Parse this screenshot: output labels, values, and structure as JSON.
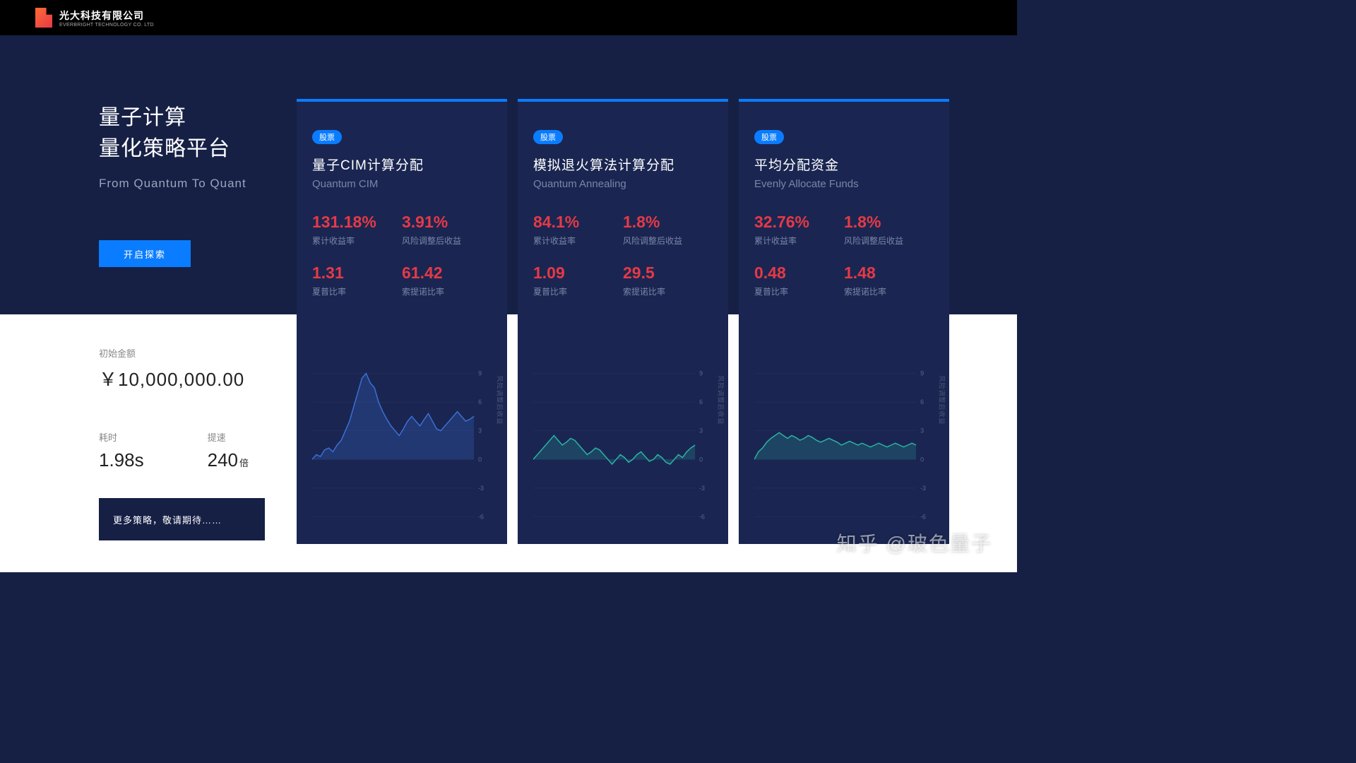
{
  "header": {
    "company_cn": "光大科技有限公司",
    "company_en": "EVERBRIGHT TECHNOLOGY CO. LTD"
  },
  "hero": {
    "title_line1": "量子计算",
    "title_line2": "量化策略平台",
    "subtitle": "From Quantum To Quant",
    "explore_label": "开启探索"
  },
  "stats": {
    "amount_label": "初始金额",
    "amount_value": "￥10,000,000.00",
    "time_label": "耗时",
    "time_value": "1.98s",
    "speed_label": "提速",
    "speed_value": "240",
    "speed_unit": "倍"
  },
  "more_strategies": "更多策略，敬请期待……",
  "cards_common": {
    "tag": "股票",
    "metric_labels": {
      "cum_return": "累计收益率",
      "risk_adj": "风险调整后收益",
      "sharpe": "夏普比率",
      "sortino": "索提诺比率"
    },
    "chart": {
      "ytick_values": [
        -6,
        -3,
        0,
        3,
        6,
        9
      ],
      "ylim": [
        -7,
        10
      ],
      "grid_color": "#2a3560",
      "ylabel": "风险调整后收益",
      "tick_color": "#5a6588"
    }
  },
  "cards": [
    {
      "title_cn": "量子CIM计算分配",
      "title_en": "Quantum CIM",
      "metrics": {
        "cum_return": "131.18%",
        "risk_adj": "3.91%",
        "sharpe": "1.31",
        "sortino": "61.42"
      },
      "chart": {
        "line_color": "#3b6fd6",
        "fill_color": "rgba(59,111,214,0.25)",
        "data": [
          0,
          0.5,
          0.3,
          1,
          1.2,
          0.8,
          1.5,
          2,
          3,
          4,
          5.5,
          7,
          8.5,
          9,
          8,
          7.5,
          6,
          5,
          4.2,
          3.5,
          3,
          2.5,
          3.2,
          4,
          4.5,
          4,
          3.5,
          4.2,
          4.8,
          4,
          3.2,
          3,
          3.5,
          4,
          4.5,
          5,
          4.5,
          4,
          4.2,
          4.5
        ]
      }
    },
    {
      "title_cn": "模拟退火算法计算分配",
      "title_en": "Quantum Annealing",
      "metrics": {
        "cum_return": "84.1%",
        "risk_adj": "1.8%",
        "sharpe": "1.09",
        "sortino": "29.5"
      },
      "chart": {
        "line_color": "#2bb3a3",
        "fill_color": "rgba(43,179,163,0.22)",
        "data": [
          0,
          0.5,
          1,
          1.5,
          2,
          2.5,
          2,
          1.5,
          1.8,
          2.2,
          2,
          1.5,
          1,
          0.5,
          0.8,
          1.2,
          1,
          0.5,
          0,
          -0.5,
          0,
          0.5,
          0.2,
          -0.3,
          0,
          0.5,
          0.8,
          0.3,
          -0.2,
          0,
          0.5,
          0.2,
          -0.3,
          -0.5,
          0,
          0.5,
          0.2,
          0.8,
          1.2,
          1.5
        ]
      }
    },
    {
      "title_cn": "平均分配资金",
      "title_en": "Evenly Allocate Funds",
      "metrics": {
        "cum_return": "32.76%",
        "risk_adj": "1.8%",
        "sharpe": "0.48",
        "sortino": "1.48"
      },
      "chart": {
        "line_color": "#2bb3a3",
        "fill_color": "rgba(43,179,163,0.22)",
        "data": [
          0,
          0.8,
          1.2,
          1.8,
          2.2,
          2.5,
          2.8,
          2.5,
          2.2,
          2.5,
          2.3,
          2,
          2.2,
          2.5,
          2.3,
          2,
          1.8,
          2,
          2.2,
          2,
          1.8,
          1.5,
          1.7,
          1.9,
          1.7,
          1.5,
          1.7,
          1.5,
          1.3,
          1.5,
          1.7,
          1.5,
          1.3,
          1.5,
          1.7,
          1.5,
          1.3,
          1.5,
          1.7,
          1.5
        ]
      }
    }
  ],
  "watermark": "知乎 @玻色量子",
  "colors": {
    "bg_dark": "#162045",
    "card_bg": "#1a2651",
    "accent_blue": "#0a7cff",
    "metric_red": "#e63946",
    "text_muted": "#7a85a8"
  }
}
